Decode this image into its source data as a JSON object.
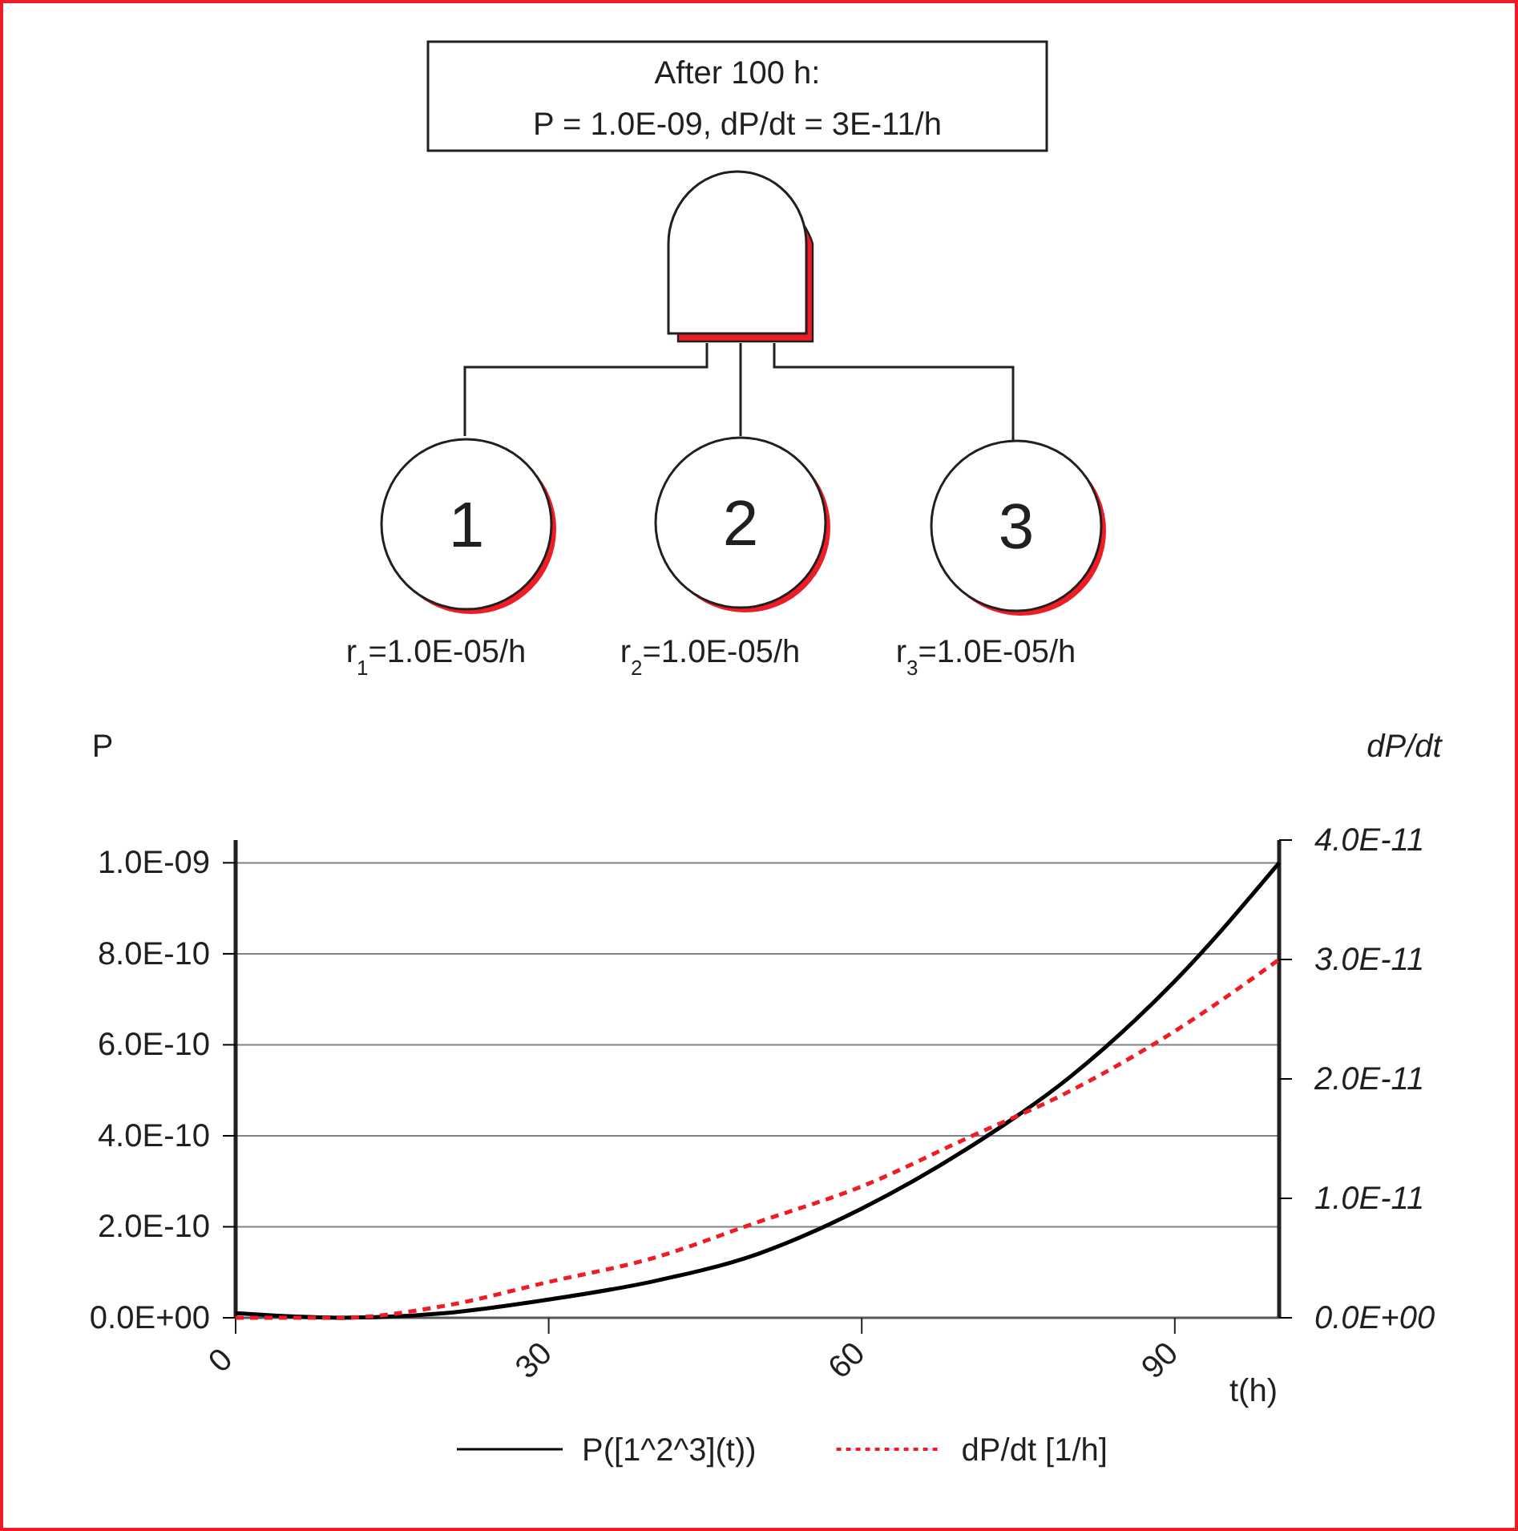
{
  "chart_data": {
    "type": "line",
    "xlabel": "t(h)",
    "ylabel": "P",
    "y2label": "dP/dt",
    "annotations": [
      "After 100 h:",
      "P = 1.0E-09, dP/dt = 3E-11/h",
      "1",
      "2",
      "3",
      "r$_{1}$=1.0E-05/h",
      "r$_{2}$=1.0E-05/h",
      "r$_{3}$=1.0E-05/h"
    ],
    "x": [
      0,
      10,
      20,
      30,
      40,
      50,
      60,
      70,
      80,
      90,
      100
    ],
    "series": [
      {
        "name": "P([1^2^3](t))",
        "color": "#000000",
        "line_style": "solid",
        "values": [
          1e-11,
          0,
          1e-11,
          4e-11,
          8e-11,
          1.4e-10,
          2.4e-10,
          3.7e-10,
          5.3e-10,
          7.4e-10,
          1e-09
        ]
      },
      {
        "name": "dP/dt [1/h]",
        "color": "#ee1c25",
        "line_style": "dashed",
        "axis": "y2",
        "values": [
          0,
          0,
          1e-12,
          3e-12,
          5e-12,
          8e-12,
          1.1e-11,
          1.5e-11,
          1.9e-11,
          2.4e-11,
          3e-11
        ]
      }
    ],
    "xlim": [
      0,
      100
    ],
    "xticks": [
      0,
      30,
      60,
      90
    ],
    "ylim": [
      0,
      1.05e-09
    ],
    "yticks": [
      {
        "value": 0,
        "label": "0.0E+00"
      },
      {
        "value": 2e-10,
        "label": "2.0E-10"
      },
      {
        "value": 4e-10,
        "label": "4.0E-10"
      },
      {
        "value": 6e-10,
        "label": "6.0E-10"
      },
      {
        "value": 8e-10,
        "label": "8.0E-10"
      },
      {
        "value": 1e-09,
        "label": "1.0E-09"
      }
    ],
    "y2lim": [
      0,
      4e-11
    ],
    "y2ticks": [
      {
        "value": 0,
        "label": "0.0E+00"
      },
      {
        "value": 1e-11,
        "label": "1.0E-11"
      },
      {
        "value": 2e-11,
        "label": "2.0E-11"
      },
      {
        "value": 3e-11,
        "label": "3.0E-11"
      },
      {
        "value": 4e-11,
        "label": "4.0E-11"
      }
    ],
    "grid": "y",
    "legend": "bottom",
    "marker": "none"
  }
}
